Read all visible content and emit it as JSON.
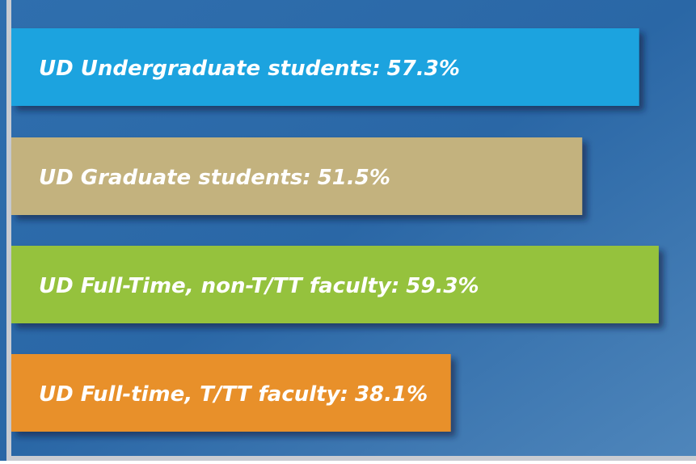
{
  "chart_data": {
    "type": "bar",
    "orientation": "horizontal",
    "categories": [
      "UD Undergraduate students:",
      "UD Graduate students:",
      "UD Full-Time, non-T/TT faculty:",
      "UD Full-time, T/TT faculty:"
    ],
    "values": [
      57.3,
      51.5,
      59.3,
      38.1
    ],
    "value_labels": [
      "57.3%",
      "51.5%",
      "59.3%",
      "38.1%"
    ],
    "colors": [
      "#1ba3df",
      "#c3b27e",
      "#95c23e",
      "#e8902b"
    ],
    "xlim": [
      -6.7,
      63.1
    ]
  }
}
